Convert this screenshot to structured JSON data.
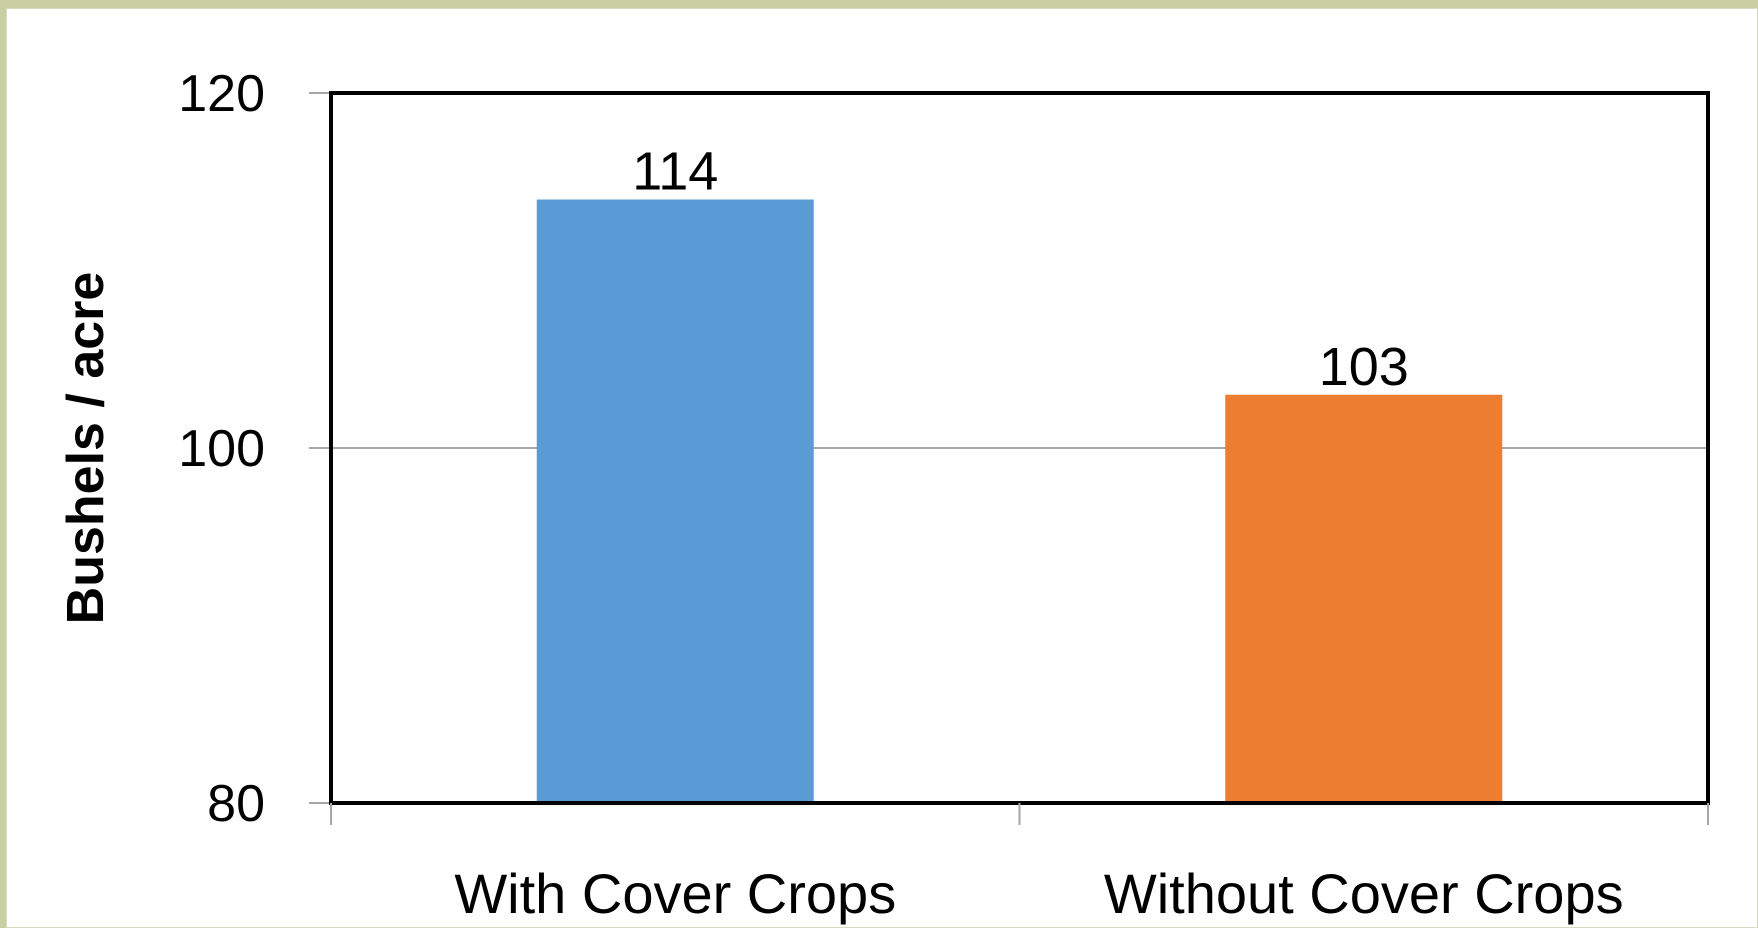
{
  "chart_data": {
    "type": "bar",
    "categories": [
      "With Cover Crops",
      "Without Cover Crops"
    ],
    "values": [
      114,
      103
    ],
    "data_labels": [
      "114",
      "103"
    ],
    "colors": [
      "#5b9bd5",
      "#ed7d31"
    ],
    "title": "",
    "xlabel": "",
    "ylabel": "Bushels / acre",
    "ylim": [
      80,
      120
    ],
    "yticks": [
      80,
      100,
      120
    ],
    "ytick_labels": [
      "80",
      "100",
      "120"
    ],
    "grid": true,
    "legend": "none"
  }
}
